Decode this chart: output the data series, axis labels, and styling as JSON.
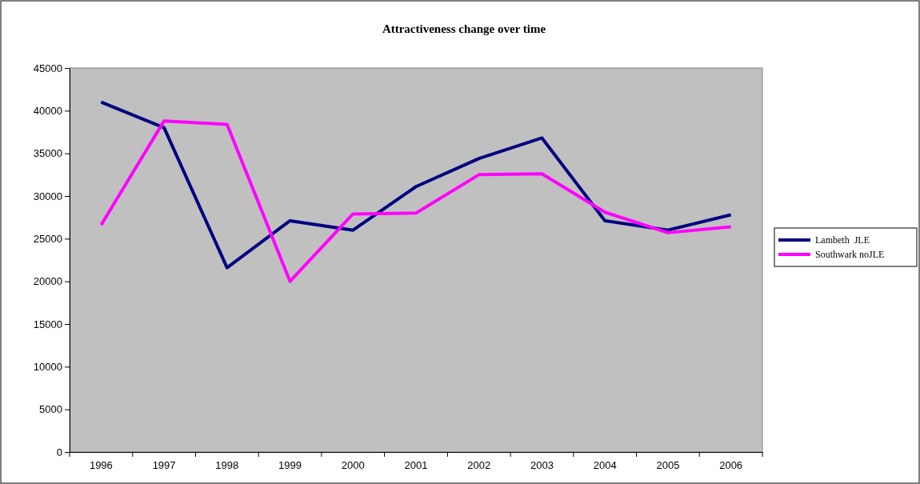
{
  "chart_data": {
    "type": "line",
    "title": "Attractiveness change over time",
    "categories": [
      "1996",
      "1997",
      "1998",
      "1999",
      "2000",
      "2001",
      "2002",
      "2003",
      "2004",
      "2005",
      "2006"
    ],
    "series": [
      {
        "name": "Lambeth  JLE",
        "color": "#000080",
        "values": [
          41000,
          38000,
          21600,
          27100,
          26000,
          31100,
          34400,
          36800,
          27100,
          26000,
          27800
        ]
      },
      {
        "name": "Southwark noJLE",
        "color": "#ff00ff",
        "values": [
          26600,
          38800,
          38400,
          20000,
          27900,
          28000,
          32500,
          32600,
          28100,
          25700,
          26400
        ]
      }
    ],
    "ylim": [
      0,
      45000
    ],
    "yticks": [
      0,
      5000,
      10000,
      15000,
      20000,
      25000,
      30000,
      35000,
      40000,
      45000
    ],
    "grid": false,
    "legend": "right",
    "marker": "none",
    "line_style": "solid"
  }
}
